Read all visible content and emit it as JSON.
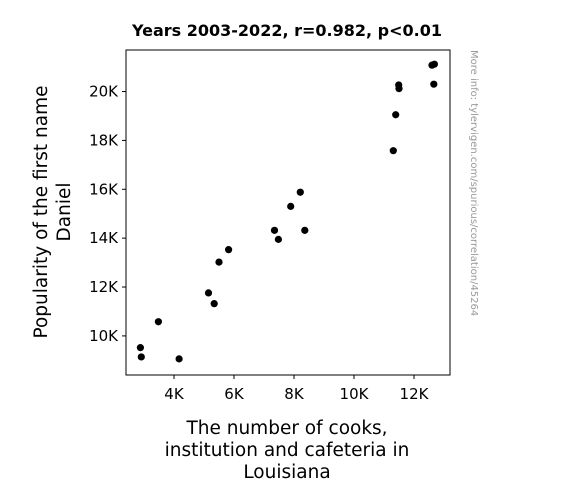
{
  "chart_data": {
    "type": "scatter",
    "title": "Years 2003-2022, r=0.982, p<0.01",
    "xlabel": [
      "The number of cooks,",
      "institution and cafeteria in",
      "Louisiana"
    ],
    "ylabel": [
      "Popularity of the first name",
      "Daniel"
    ],
    "xlim": [
      2400,
      13200
    ],
    "ylim": [
      8400,
      21700
    ],
    "xticks": [
      {
        "value": 4000,
        "label": "4K"
      },
      {
        "value": 6000,
        "label": "6K"
      },
      {
        "value": 8000,
        "label": "8K"
      },
      {
        "value": 10000,
        "label": "10K"
      },
      {
        "value": 12000,
        "label": "12K"
      }
    ],
    "yticks": [
      {
        "value": 10000,
        "label": "10K"
      },
      {
        "value": 12000,
        "label": "12K"
      },
      {
        "value": 14000,
        "label": "14K"
      },
      {
        "value": 16000,
        "label": "16K"
      },
      {
        "value": 18000,
        "label": "18K"
      },
      {
        "value": 20000,
        "label": "20K"
      }
    ],
    "grid": false,
    "marker_color": "#000000",
    "points": [
      {
        "x": 2880,
        "y": 9520
      },
      {
        "x": 2910,
        "y": 9140
      },
      {
        "x": 3480,
        "y": 10580
      },
      {
        "x": 4170,
        "y": 9060
      },
      {
        "x": 5150,
        "y": 11760
      },
      {
        "x": 5340,
        "y": 11320
      },
      {
        "x": 5500,
        "y": 13020
      },
      {
        "x": 5820,
        "y": 13530
      },
      {
        "x": 7350,
        "y": 14320
      },
      {
        "x": 7480,
        "y": 13950
      },
      {
        "x": 7890,
        "y": 15300
      },
      {
        "x": 8210,
        "y": 15880
      },
      {
        "x": 8360,
        "y": 14320
      },
      {
        "x": 11310,
        "y": 17580
      },
      {
        "x": 11390,
        "y": 19050
      },
      {
        "x": 11490,
        "y": 20270
      },
      {
        "x": 11500,
        "y": 20120
      },
      {
        "x": 12600,
        "y": 21080
      },
      {
        "x": 12680,
        "y": 21120
      },
      {
        "x": 12660,
        "y": 20300
      }
    ]
  },
  "watermark": "More info: tylervigen.com/spurious/correlation/45264"
}
